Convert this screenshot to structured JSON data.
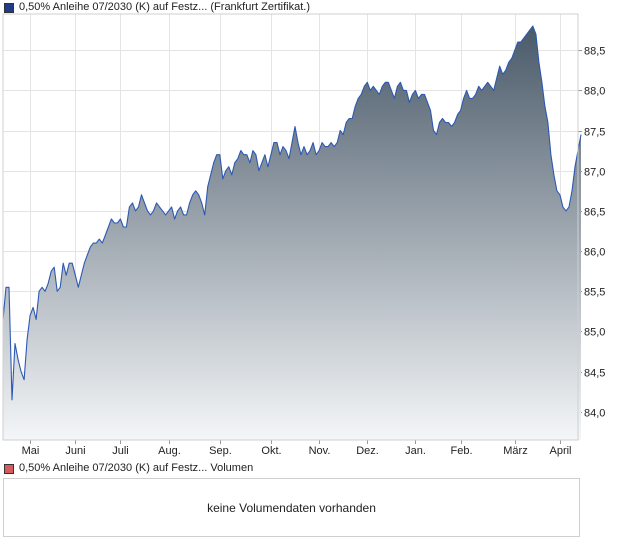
{
  "legend_price": {
    "label": "0,50% Anleihe 07/2030 (K) auf Festz... (Frankfurt Zertifikat.)",
    "color": "#1f3c88"
  },
  "legend_volume": {
    "label": "0,50% Anleihe 07/2030 (K) auf Festz... Volumen",
    "color": "#d85a5a"
  },
  "volume_message": "keine Volumendaten vorhanden",
  "chart_data": {
    "type": "area",
    "title": "0,50% Anleihe 07/2030 (K) auf Festz... (Frankfurt Zertifikat.)",
    "xlabel": "",
    "ylabel": "",
    "ylim": [
      83.65,
      88.95
    ],
    "y_ticks": [
      "84,0",
      "84,5",
      "85,0",
      "85,5",
      "86,0",
      "86,5",
      "87,0",
      "87,5",
      "88,0",
      "88,5"
    ],
    "y_tick_values": [
      84.0,
      84.5,
      85.0,
      85.5,
      86.0,
      86.5,
      87.0,
      87.5,
      88.0,
      88.5
    ],
    "x_ticks": [
      "Mai",
      "Juni",
      "Juli",
      "Aug.",
      "Sep.",
      "Okt.",
      "Nov.",
      "Dez.",
      "Jan.",
      "Feb.",
      "März",
      "April"
    ],
    "x_tick_values": [
      9,
      24,
      39,
      55,
      72,
      89,
      105,
      121,
      137,
      152,
      170,
      185
    ],
    "x_range": [
      0,
      191
    ],
    "grid": true,
    "line_color": "#2d59b3",
    "fill_top_color": "#4a5a69",
    "fill_bottom_color": "#f4f6f8",
    "series": [
      {
        "values": [
          85.15,
          85.55,
          85.55,
          84.15,
          84.85,
          84.65,
          84.5,
          84.4,
          84.9,
          85.2,
          85.3,
          85.15,
          85.5,
          85.55,
          85.5,
          85.6,
          85.75,
          85.8,
          85.5,
          85.55,
          85.85,
          85.7,
          85.85,
          85.85,
          85.7,
          85.55,
          85.7,
          85.85,
          85.95,
          86.05,
          86.1,
          86.1,
          86.15,
          86.1,
          86.2,
          86.3,
          86.4,
          86.35,
          86.35,
          86.4,
          86.3,
          86.3,
          86.55,
          86.6,
          86.5,
          86.55,
          86.7,
          86.6,
          86.5,
          86.45,
          86.5,
          86.6,
          86.55,
          86.5,
          86.45,
          86.5,
          86.55,
          86.4,
          86.5,
          86.55,
          86.45,
          86.45,
          86.6,
          86.7,
          86.75,
          86.7,
          86.6,
          86.45,
          86.8,
          86.95,
          87.1,
          87.2,
          87.2,
          86.9,
          87.0,
          87.05,
          86.95,
          87.1,
          87.15,
          87.25,
          87.2,
          87.2,
          87.1,
          87.25,
          87.2,
          87.0,
          87.1,
          87.2,
          87.05,
          87.2,
          87.35,
          87.35,
          87.2,
          87.3,
          87.25,
          87.15,
          87.35,
          87.55,
          87.35,
          87.2,
          87.3,
          87.2,
          87.25,
          87.35,
          87.2,
          87.25,
          87.35,
          87.3,
          87.3,
          87.35,
          87.3,
          87.35,
          87.5,
          87.45,
          87.6,
          87.65,
          87.65,
          87.8,
          87.9,
          87.95,
          88.05,
          88.1,
          88.0,
          88.05,
          88.0,
          87.95,
          88.05,
          88.1,
          88.1,
          88.0,
          87.9,
          88.05,
          88.1,
          88.0,
          88.0,
          87.85,
          87.95,
          88.0,
          87.9,
          87.95,
          87.95,
          87.85,
          87.75,
          87.5,
          87.45,
          87.6,
          87.65,
          87.6,
          87.6,
          87.55,
          87.6,
          87.7,
          87.75,
          87.9,
          88.0,
          87.9,
          87.9,
          87.95,
          88.05,
          88.0,
          88.05,
          88.1,
          88.05,
          88.0,
          88.15,
          88.3,
          88.2,
          88.25,
          88.35,
          88.4,
          88.5,
          88.6,
          88.6,
          88.65,
          88.7,
          88.75,
          88.8,
          88.7,
          88.35,
          88.1,
          87.8,
          87.6,
          87.2,
          86.95,
          86.75,
          86.7,
          86.55,
          86.5,
          86.55,
          86.75,
          87.05,
          87.25,
          87.45
        ]
      }
    ]
  }
}
